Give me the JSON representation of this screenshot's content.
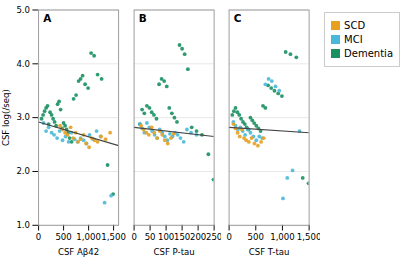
{
  "chart_data": [
    {
      "type": "scatter",
      "title": "A",
      "xlabel": "CSF Aβ42",
      "ylabel": "CSF log(/seq)",
      "xlim": [
        0,
        1600
      ],
      "xticks": [
        0,
        500,
        1000,
        1500
      ],
      "ylim": [
        1,
        5
      ],
      "yticks": [
        1,
        2,
        3,
        4,
        5
      ],
      "grid": true,
      "series": [
        {
          "name": "SCD",
          "color": "#e8a020",
          "x": [
            430,
            480,
            530,
            580,
            640,
            690,
            740,
            790,
            840,
            900,
            950,
            1010,
            1060,
            1120,
            1180,
            1250,
            1340,
            1430
          ],
          "values": [
            2.85,
            2.78,
            2.72,
            2.68,
            2.82,
            2.62,
            2.72,
            2.55,
            2.6,
            2.68,
            2.52,
            2.45,
            2.62,
            2.58,
            2.55,
            2.65,
            2.6,
            2.72
          ]
        },
        {
          "name": "MCI",
          "color": "#4ab8d8",
          "x": [
            100,
            150,
            200,
            260,
            310,
            370,
            420,
            480,
            540,
            600,
            660,
            720,
            780,
            840,
            900,
            960,
            1020,
            1090,
            1160,
            1240,
            1320,
            1450
          ],
          "values": [
            2.9,
            2.75,
            2.82,
            2.72,
            2.68,
            2.62,
            2.75,
            2.58,
            2.65,
            2.55,
            2.72,
            2.6,
            2.55,
            2.62,
            2.58,
            2.52,
            2.68,
            2.6,
            2.75,
            2.65,
            1.42,
            1.55
          ]
        },
        {
          "name": "Dementia",
          "color": "#1a9060",
          "x": [
            60,
            90,
            120,
            150,
            180,
            200,
            230,
            260,
            290,
            320,
            350,
            380,
            410,
            440,
            470,
            500,
            530,
            560,
            590,
            620,
            660,
            700,
            750,
            800,
            840,
            880,
            930,
            990,
            1050,
            1110,
            1180,
            1260,
            1380,
            1490
          ],
          "values": [
            2.98,
            3.05,
            3.12,
            3.18,
            3.22,
            2.88,
            3.1,
            3.05,
            2.98,
            2.92,
            2.85,
            3.25,
            3.3,
            3.15,
            2.8,
            2.9,
            2.85,
            2.78,
            2.72,
            2.62,
            2.55,
            3.35,
            3.42,
            3.68,
            3.72,
            3.78,
            3.62,
            3.55,
            4.2,
            4.15,
            3.8,
            3.72,
            2.12,
            1.58
          ]
        },
        {
          "type": "line",
          "color": "#444444",
          "x": [
            0,
            1600
          ],
          "values": [
            2.92,
            2.48
          ]
        }
      ]
    },
    {
      "type": "scatter",
      "title": "B",
      "xlabel": "CSF P-tau",
      "xlim": [
        0,
        250
      ],
      "xticks": [
        0,
        50,
        100,
        150,
        200,
        250
      ],
      "ylim": [
        1,
        5
      ],
      "yticks": [
        1,
        2,
        3,
        4,
        5
      ],
      "grid": true,
      "tick_labels": "x",
      "series": [
        {
          "name": "SCD",
          "color": "#e8a020",
          "x": [
            22,
            30,
            38,
            46,
            55,
            63,
            72,
            80,
            88,
            96,
            105,
            115,
            124
          ],
          "values": [
            2.85,
            2.78,
            2.72,
            2.68,
            2.82,
            2.72,
            2.62,
            2.75,
            2.68,
            2.58,
            2.52,
            2.62,
            2.7
          ]
        },
        {
          "name": "MCI",
          "color": "#4ab8d8",
          "x": [
            18,
            25,
            32,
            40,
            48,
            56,
            64,
            72,
            80,
            88,
            96,
            104,
            112,
            120,
            128,
            136,
            145,
            155,
            165,
            178,
            195
          ],
          "values": [
            2.88,
            2.8,
            2.72,
            2.9,
            2.82,
            2.75,
            2.68,
            2.62,
            2.78,
            2.72,
            2.65,
            2.58,
            2.7,
            2.65,
            2.72,
            2.68,
            2.62,
            2.55,
            2.78,
            2.72,
            2.68
          ]
        },
        {
          "name": "Dementia",
          "color": "#1a9060",
          "x": [
            18,
            25,
            32,
            40,
            48,
            55,
            62,
            70,
            78,
            86,
            94,
            102,
            110,
            118,
            126,
            134,
            142,
            150,
            158,
            168,
            180,
            195,
            212,
            232,
            248
          ],
          "values": [
            2.88,
            3.15,
            3.08,
            3.22,
            3.18,
            3.1,
            3.05,
            2.98,
            3.62,
            3.72,
            3.68,
            3.58,
            3.18,
            3.08,
            3.0,
            2.92,
            4.35,
            4.28,
            4.18,
            3.9,
            2.82,
            2.75,
            2.68,
            2.32,
            1.85
          ]
        },
        {
          "type": "line",
          "color": "#444444",
          "x": [
            0,
            250
          ],
          "values": [
            2.82,
            2.65
          ]
        }
      ]
    },
    {
      "type": "scatter",
      "title": "C",
      "xlabel": "CSF T-tau",
      "xlim": [
        0,
        1500
      ],
      "xticks": [
        0,
        500,
        1000,
        1500
      ],
      "ylim": [
        1,
        5
      ],
      "yticks": [
        1,
        2,
        3,
        4,
        5
      ],
      "grid": true,
      "tick_labels": "x",
      "legend": "right",
      "series": [
        {
          "name": "SCD",
          "color": "#e8a020",
          "x": [
            80,
            120,
            160,
            200,
            240,
            280,
            320,
            370,
            420,
            475,
            540,
            600,
            650
          ],
          "values": [
            2.88,
            2.8,
            2.72,
            2.65,
            2.78,
            2.62,
            2.58,
            2.55,
            2.62,
            2.52,
            2.48,
            2.55,
            2.62
          ]
        },
        {
          "name": "MCI",
          "color": "#4ab8d8",
          "x": [
            80,
            120,
            165,
            210,
            255,
            300,
            350,
            400,
            455,
            510,
            565,
            620,
            680,
            740,
            800,
            870,
            940,
            1010,
            1090,
            1190,
            1320
          ],
          "values": [
            2.92,
            2.85,
            2.78,
            2.82,
            2.75,
            2.68,
            2.78,
            2.72,
            2.65,
            2.58,
            2.65,
            2.62,
            3.62,
            3.72,
            3.68,
            3.58,
            3.5,
            1.5,
            1.88,
            2.02,
            2.75
          ]
        },
        {
          "name": "Dementia",
          "color": "#1a9060",
          "x": [
            60,
            90,
            120,
            155,
            190,
            225,
            260,
            295,
            330,
            365,
            400,
            435,
            470,
            510,
            550,
            590,
            635,
            680,
            730,
            790,
            850,
            920,
            990,
            1060,
            1150,
            1260,
            1380,
            1490
          ],
          "values": [
            3.05,
            3.12,
            3.18,
            3.1,
            3.05,
            2.98,
            2.92,
            2.88,
            2.82,
            2.78,
            3.0,
            2.95,
            2.9,
            2.85,
            2.8,
            2.75,
            3.22,
            3.18,
            3.6,
            3.55,
            3.5,
            3.45,
            3.4,
            4.22,
            4.18,
            4.12,
            1.88,
            1.78
          ]
        },
        {
          "type": "line",
          "color": "#444444",
          "x": [
            0,
            1500
          ],
          "values": [
            2.82,
            2.72
          ]
        }
      ]
    }
  ]
}
